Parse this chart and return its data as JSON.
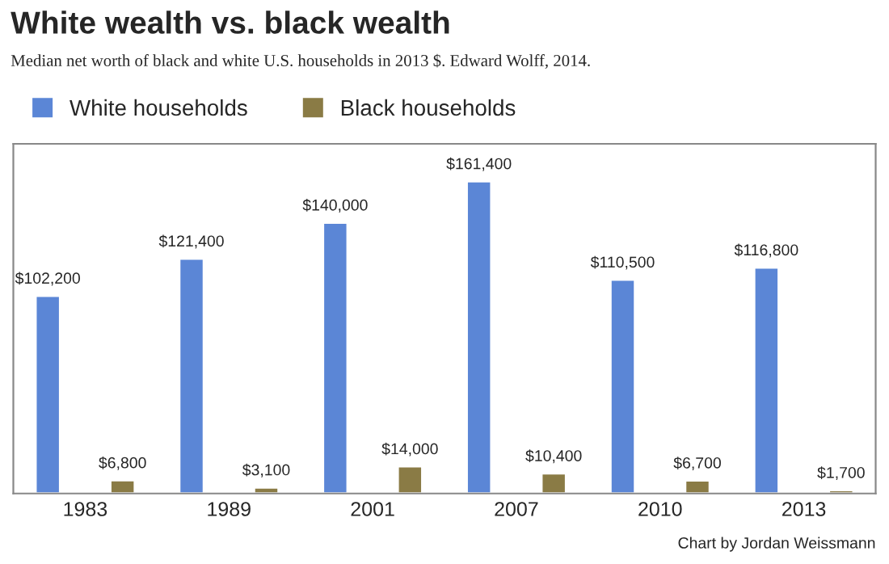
{
  "chart_data": {
    "type": "bar",
    "title": "White wealth vs. black wealth",
    "subtitle": "Median net worth of black and white U.S. households in 2013 $. Edward Wolff, 2014.",
    "categories": [
      "1983",
      "1989",
      "2001",
      "2007",
      "2010",
      "2013"
    ],
    "series": [
      {
        "name": "White households",
        "color": "#5b86d6",
        "values": [
          102200,
          121400,
          140000,
          161400,
          110500,
          116800
        ],
        "value_labels": [
          "$102,200",
          "$121,400",
          "$140,000",
          "$161,400",
          "$110,500",
          "$116,800"
        ]
      },
      {
        "name": "Black households",
        "color": "#8a7b45",
        "values": [
          6800,
          3100,
          14000,
          10400,
          6700,
          1700
        ],
        "value_labels": [
          "$6,800",
          "$3,100",
          "$14,000",
          "$10,400",
          "$6,700",
          "$1,700"
        ]
      }
    ],
    "annotations": [
      "Chart by Jordan Weissmann"
    ],
    "legend": "top left",
    "grid": false,
    "tick_labels": "x"
  }
}
